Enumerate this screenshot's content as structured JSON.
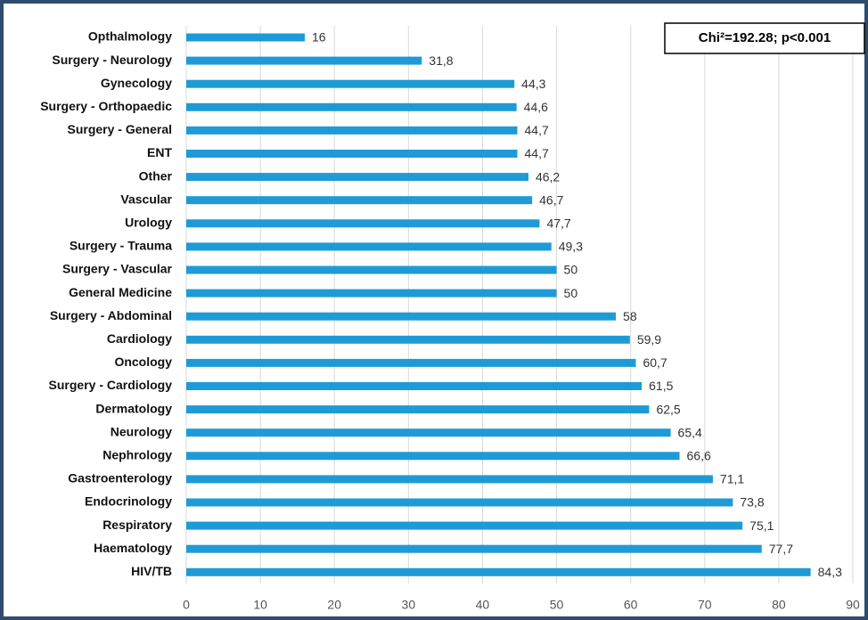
{
  "chart_data": {
    "type": "barh",
    "annotation": "Chi²=192.28; p<0.001",
    "categories": [
      "Opthalmology",
      "Surgery - Neurology",
      "Gynecology",
      "Surgery - Orthopaedic",
      "Surgery - General",
      "ENT",
      "Other",
      "Vascular",
      "Urology",
      "Surgery - Trauma",
      "Surgery - Vascular",
      "General Medicine",
      "Surgery - Abdominal",
      "Cardiology",
      "Oncology",
      "Surgery - Cardiology",
      "Dermatology",
      "Neurology",
      "Nephrology",
      "Gastroenterology",
      "Endocrinology",
      "Respiratory",
      "Haematology",
      "HIV/TB"
    ],
    "values": [
      16,
      31.8,
      44.3,
      44.6,
      44.7,
      44.7,
      46.2,
      46.7,
      47.7,
      49.3,
      50,
      50,
      58,
      59.9,
      60.7,
      61.5,
      62.5,
      65.4,
      66.6,
      71.1,
      73.8,
      75.1,
      77.7,
      84.3
    ],
    "value_labels": [
      "16",
      "31,8",
      "44,3",
      "44,6",
      "44,7",
      "44,7",
      "46,2",
      "46,7",
      "47,7",
      "49,3",
      "50",
      "50",
      "58",
      "59,9",
      "60,7",
      "61,5",
      "62,5",
      "65,4",
      "66,6",
      "71,1",
      "73,8",
      "75,1",
      "77,7",
      "84,3"
    ],
    "color": "#1e9bd7",
    "xlim": [
      0,
      90
    ],
    "xticks": [
      0,
      10,
      20,
      30,
      40,
      50,
      60,
      70,
      80,
      90
    ],
    "grid": true
  }
}
